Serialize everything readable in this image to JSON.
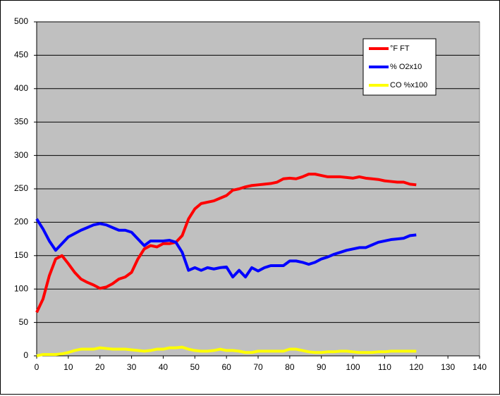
{
  "chart_data": {
    "type": "line",
    "x": [
      0,
      2,
      4,
      6,
      8,
      10,
      12,
      14,
      16,
      18,
      20,
      22,
      24,
      26,
      28,
      30,
      32,
      34,
      36,
      38,
      40,
      42,
      44,
      46,
      48,
      50,
      52,
      54,
      56,
      58,
      60,
      62,
      64,
      66,
      68,
      70,
      72,
      74,
      76,
      78,
      80,
      82,
      84,
      86,
      88,
      90,
      92,
      94,
      96,
      98,
      100,
      102,
      104,
      106,
      108,
      110,
      112,
      114,
      116,
      118,
      120
    ],
    "series": [
      {
        "name": "°F FT",
        "color": "#ff0000",
        "values": [
          65,
          85,
          120,
          145,
          150,
          138,
          125,
          115,
          110,
          106,
          101,
          103,
          108,
          115,
          118,
          125,
          145,
          160,
          165,
          163,
          168,
          168,
          170,
          180,
          205,
          220,
          228,
          230,
          232,
          236,
          240,
          248,
          250,
          253,
          255,
          256,
          257,
          258,
          260,
          265,
          266,
          265,
          268,
          272,
          272,
          270,
          268,
          268,
          268,
          267,
          266,
          268,
          266,
          265,
          264,
          262,
          261,
          260,
          260,
          257,
          256
        ]
      },
      {
        "name": "% O2x10",
        "color": "#0000ff",
        "values": [
          205,
          190,
          172,
          158,
          168,
          178,
          183,
          188,
          192,
          196,
          198,
          196,
          192,
          188,
          188,
          185,
          175,
          165,
          172,
          172,
          172,
          173,
          170,
          155,
          128,
          132,
          128,
          132,
          130,
          132,
          133,
          118,
          128,
          118,
          132,
          127,
          132,
          135,
          135,
          135,
          142,
          142,
          140,
          137,
          140,
          145,
          148,
          152,
          155,
          158,
          160,
          162,
          162,
          166,
          170,
          172,
          174,
          175,
          176,
          180,
          181
        ]
      },
      {
        "name": "CO %x100",
        "color": "#ffff00",
        "values": [
          0,
          2,
          2,
          2,
          3,
          5,
          8,
          10,
          10,
          10,
          12,
          11,
          10,
          10,
          10,
          9,
          8,
          7,
          8,
          10,
          10,
          12,
          12,
          13,
          10,
          8,
          7,
          7,
          8,
          10,
          8,
          8,
          7,
          5,
          5,
          7,
          7,
          7,
          7,
          7,
          10,
          10,
          8,
          6,
          5,
          5,
          6,
          6,
          7,
          7,
          6,
          5,
          5,
          5,
          6,
          6,
          7,
          7,
          7,
          7,
          7
        ]
      }
    ],
    "xlim": [
      0,
      140
    ],
    "xticks": [
      0,
      10,
      20,
      30,
      40,
      50,
      60,
      70,
      80,
      90,
      100,
      110,
      120,
      130,
      140
    ],
    "ylim": [
      0,
      500
    ],
    "yticks": [
      0,
      50,
      100,
      150,
      200,
      250,
      300,
      350,
      400,
      450,
      500
    ],
    "grid": true,
    "legend": "top-right"
  }
}
